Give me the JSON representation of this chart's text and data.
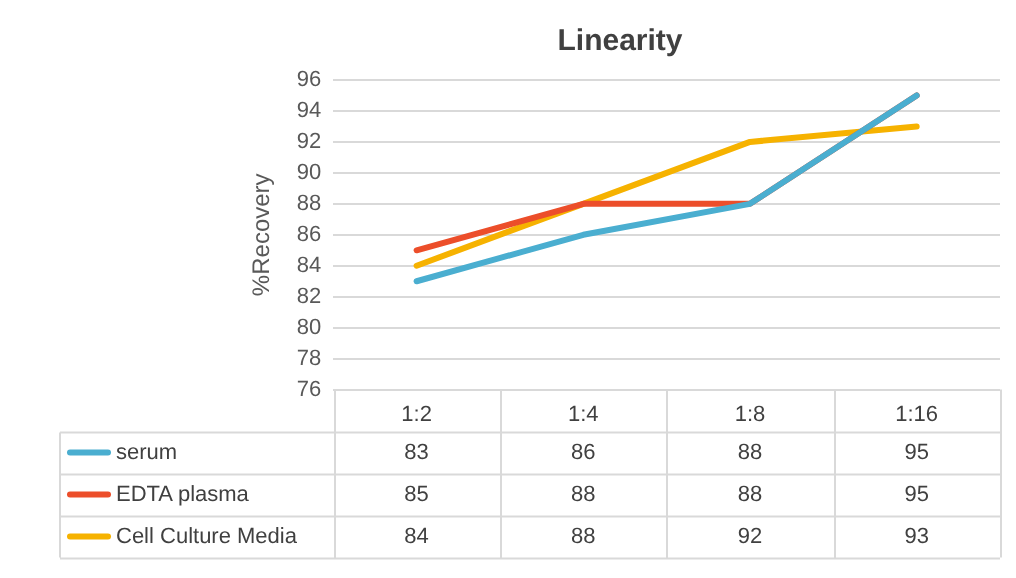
{
  "chart_data": {
    "type": "line",
    "title": "Linearity",
    "ylabel": "%Recovery",
    "categories": [
      "1:2",
      "1:4",
      "1:8",
      "1:16"
    ],
    "series": [
      {
        "name": "serum",
        "color": "#4aaed0",
        "values": [
          83,
          86,
          88,
          95
        ]
      },
      {
        "name": "EDTA plasma",
        "color": "#ec4e2a",
        "values": [
          85,
          88,
          88,
          95
        ]
      },
      {
        "name": "Cell Culture Media",
        "color": "#f6b200",
        "values": [
          84,
          88,
          92,
          93
        ]
      }
    ],
    "ylim": [
      76,
      96
    ],
    "yticks": [
      76,
      78,
      80,
      82,
      84,
      86,
      88,
      90,
      92,
      94,
      96
    ],
    "grid": "y",
    "legend": "bottom",
    "data_labels": true,
    "marker": "none",
    "line_style": "solid"
  }
}
